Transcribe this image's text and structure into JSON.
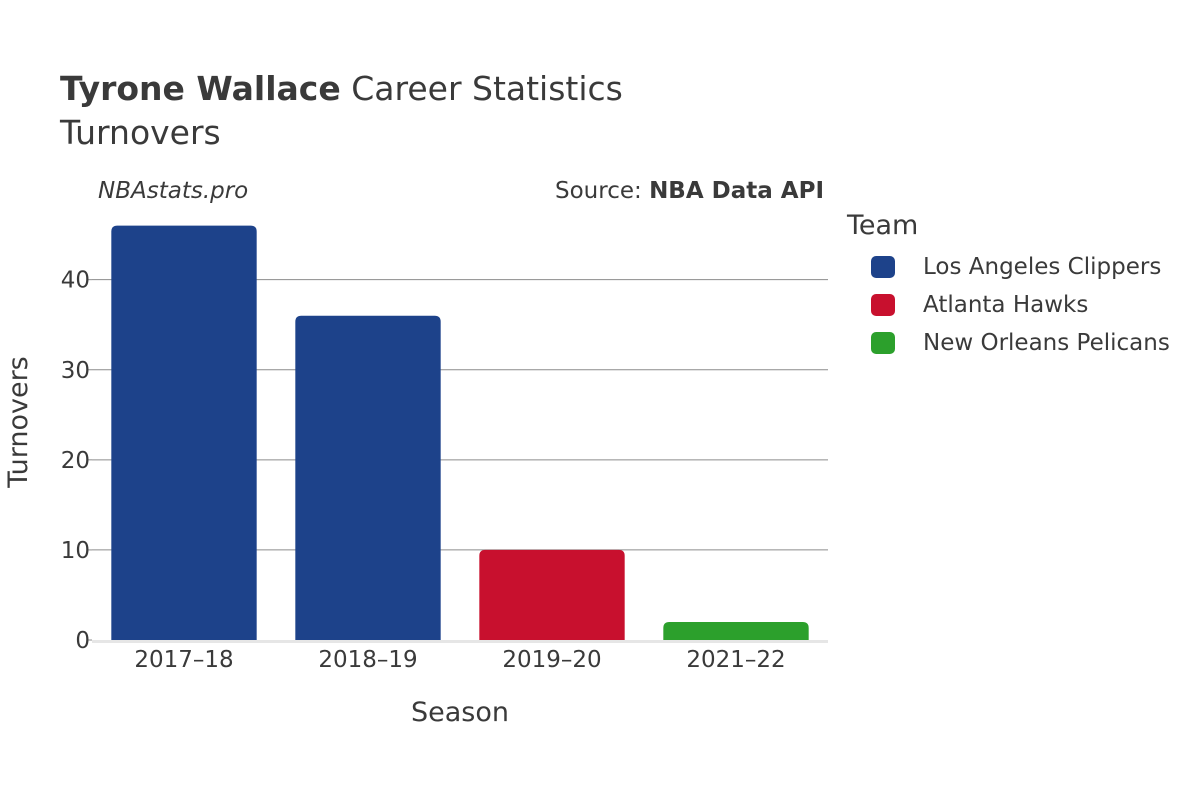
{
  "header": {
    "title_bold": "Tyrone Wallace",
    "title_rest": " Career Statistics",
    "subtitle": "Turnovers"
  },
  "watermark": "NBAstats.pro",
  "source": {
    "prefix": "Source: ",
    "name": "NBA Data API"
  },
  "legend": {
    "title": "Team",
    "items": [
      {
        "label": "Los Angeles Clippers",
        "color": "#1d428a"
      },
      {
        "label": "Atlanta Hawks",
        "color": "#c8102e"
      },
      {
        "label": "New Orleans Pelicans",
        "color": "#2ca02c"
      }
    ]
  },
  "chart_data": {
    "type": "bar",
    "categories": [
      "2017–18",
      "2018–19",
      "2019–20",
      "2021–22"
    ],
    "values": [
      46,
      36,
      10,
      2
    ],
    "teams": [
      "Los Angeles Clippers",
      "Los Angeles Clippers",
      "Atlanta Hawks",
      "New Orleans Pelicans"
    ],
    "colors": [
      "#1d428a",
      "#1d428a",
      "#c8102e",
      "#2ca02c"
    ],
    "xlabel": "Season",
    "ylabel": "Turnovers",
    "ylim": [
      0,
      48.4
    ],
    "yticks": [
      0,
      10,
      20,
      30,
      40
    ],
    "grid": true
  }
}
